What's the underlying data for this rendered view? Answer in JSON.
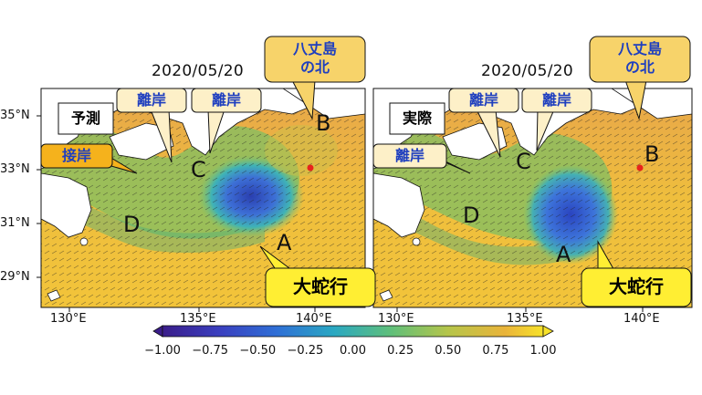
{
  "panels": [
    {
      "date": "2020/05/20",
      "title_box": "予測",
      "callouts": {
        "north_of_hachijo": [
          "八丈島",
          "の北"
        ],
        "offshore_1": "離岸",
        "offshore_2": "離岸",
        "nearshore": "接岸",
        "large_meander": "大蛇行"
      },
      "letters": {
        "A": "A",
        "B": "B",
        "C": "C",
        "D": "D"
      }
    },
    {
      "date": "2020/05/20",
      "title_box": "実際",
      "callouts": {
        "north_of_hachijo": [
          "八丈島",
          "の北"
        ],
        "offshore_1": "離岸",
        "offshore_2": "離岸",
        "offshore_3": "離岸",
        "large_meander": "大蛇行"
      },
      "letters": {
        "A": "A",
        "B": "B",
        "C": "C",
        "D": "D"
      }
    }
  ],
  "axes": {
    "lat_ticks": [
      "35°N",
      "33°N",
      "31°N",
      "29°N"
    ],
    "lon_ticks_left": [
      "130°E",
      "135°E",
      "140°E"
    ],
    "lon_ticks_right": [
      "130°E",
      "135°E",
      "140°E"
    ]
  },
  "colorbar": {
    "ticks": [
      "−1.00",
      "−0.75",
      "−0.50",
      "−0.25",
      "0.00",
      "0.25",
      "0.50",
      "0.75",
      "1.00"
    ],
    "range": [
      -1.0,
      1.0
    ],
    "colormap": "viridis-like (purple-blue-green-yellow)"
  },
  "colors": {
    "callout_cream": "#fdf0c8",
    "callout_yellow": "#ffee33",
    "callout_orange": "#f5b21c",
    "callout_gold": "#f7d36a",
    "callout_text_blue": "#1f3fbf",
    "marker_red": "#e8231c"
  }
}
